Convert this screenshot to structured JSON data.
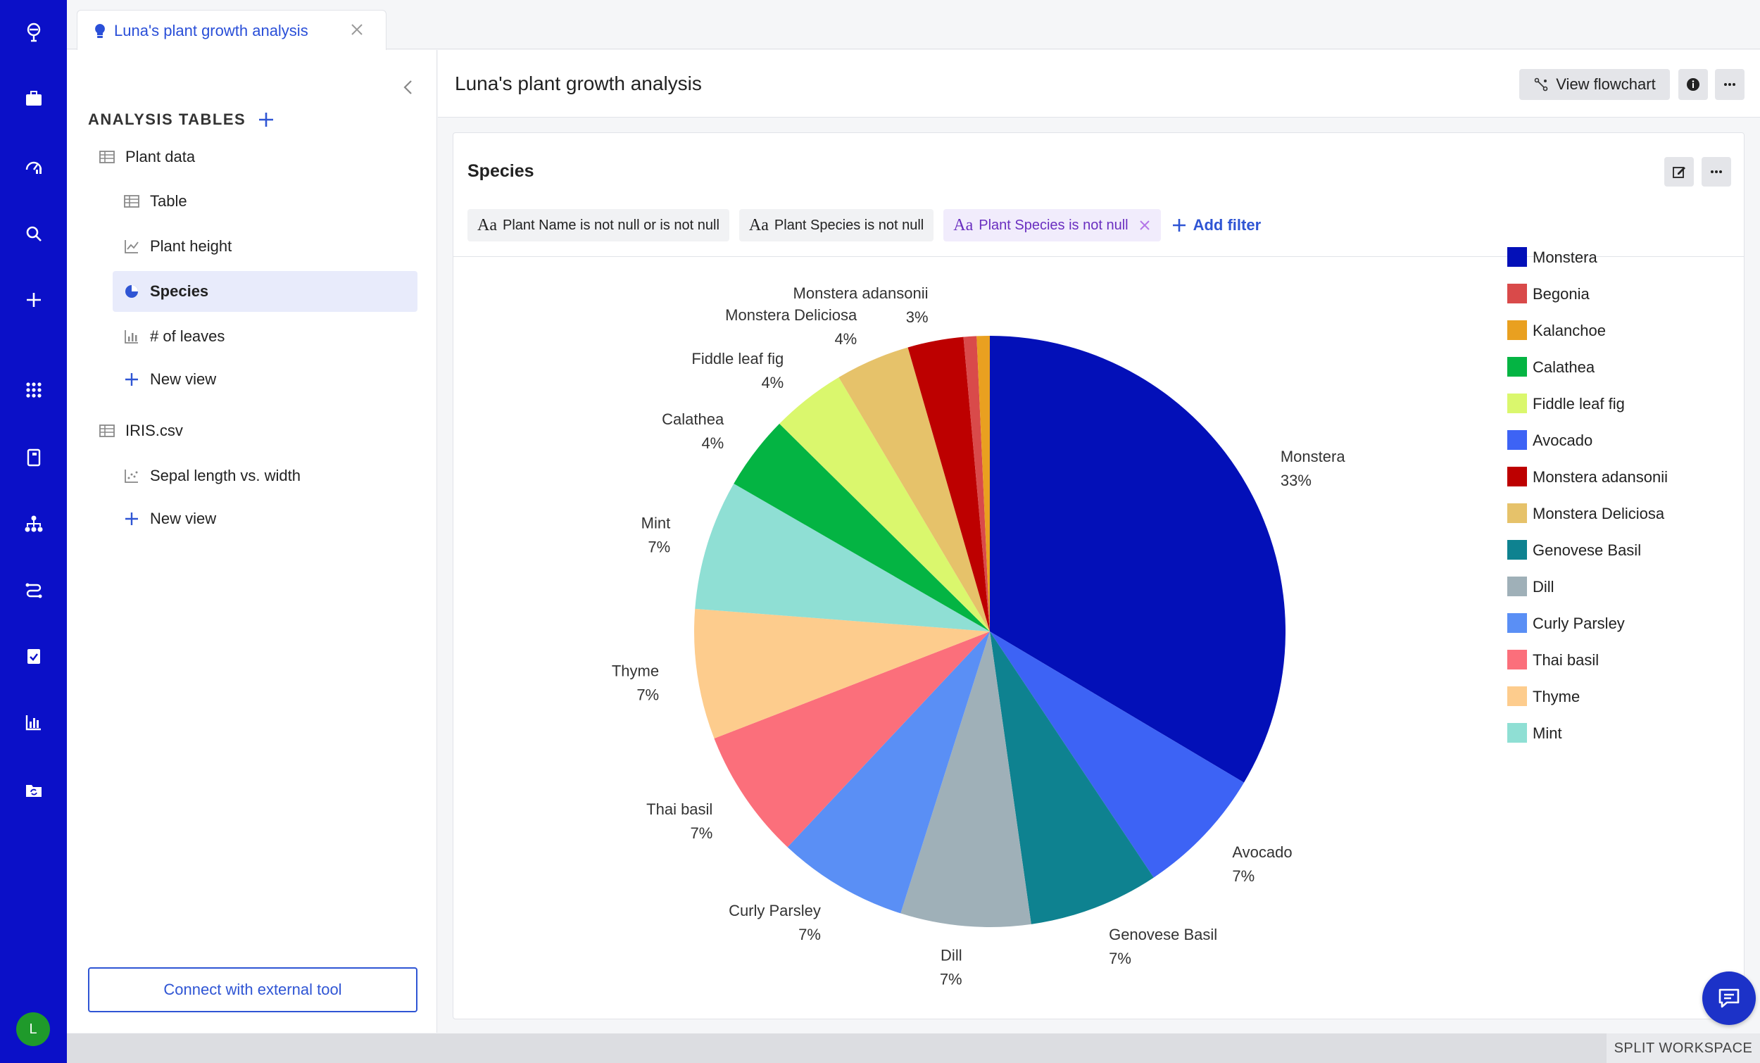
{
  "tab": {
    "title": "Luna's plant growth analysis"
  },
  "rail": {
    "items": [
      "brand-icon",
      "briefcase-icon",
      "gauge-icon",
      "search-icon",
      "plus-icon",
      "apps-grid-icon",
      "book-icon",
      "hierarchy-icon",
      "route-icon",
      "clipboard-check-icon",
      "bar-chart-icon",
      "folder-sync-icon"
    ],
    "avatar": "L"
  },
  "sidebar": {
    "section_title": "ANALYSIS TABLES",
    "tables": [
      {
        "name": "Plant data",
        "views": [
          "Table",
          "Plant height",
          "Species",
          "# of leaves"
        ],
        "new_view": "New view"
      },
      {
        "name": "IRIS.csv",
        "views": [
          "Sepal length vs. width"
        ],
        "new_view": "New view"
      }
    ],
    "connect_label": "Connect with external tool"
  },
  "header": {
    "title": "Luna's plant growth analysis",
    "view_flowchart": "View flowchart"
  },
  "card": {
    "title": "Species",
    "filters": [
      {
        "prefix": "Aa",
        "label": "Plant Name is not null or is not null"
      },
      {
        "prefix": "Aa",
        "label": "Plant Species is not null"
      },
      {
        "prefix": "Aa",
        "label": "Plant Species is not null"
      }
    ],
    "add_filter": "Add filter"
  },
  "chart_data": {
    "type": "pie",
    "slices": [
      {
        "name": "Monstera",
        "percent": 33,
        "label": "33%",
        "color": "#0310b8"
      },
      {
        "name": "Avocado",
        "percent": 7,
        "label": "7%",
        "color": "#3d63f5"
      },
      {
        "name": "Genovese Basil",
        "percent": 7,
        "label": "7%",
        "color": "#0e8290"
      },
      {
        "name": "Dill",
        "percent": 7,
        "label": "7%",
        "color": "#9fb0b8"
      },
      {
        "name": "Curly Parsley",
        "percent": 7,
        "label": "7%",
        "color": "#5a8ff5"
      },
      {
        "name": "Thai basil",
        "percent": 7,
        "label": "7%",
        "color": "#fb6f7b"
      },
      {
        "name": "Thyme",
        "percent": 7,
        "label": "7%",
        "color": "#fdcc8d"
      },
      {
        "name": "Mint",
        "percent": 7,
        "label": "7%",
        "color": "#8fdfd4"
      },
      {
        "name": "Calathea",
        "percent": 4,
        "label": "4%",
        "color": "#04b443"
      },
      {
        "name": "Fiddle leaf fig",
        "percent": 4,
        "label": "4%",
        "color": "#daf76d"
      },
      {
        "name": "Monstera Deliciosa",
        "percent": 4,
        "label": "4%",
        "color": "#e6c26a"
      },
      {
        "name": "Monstera adansonii",
        "percent": 3,
        "label": "3%",
        "color": "#bd0000"
      },
      {
        "name": "Begonia",
        "percent": 0.7,
        "label": "",
        "color": "#d94a4a"
      },
      {
        "name": "Kalanchoe",
        "percent": 0.7,
        "label": "",
        "color": "#e9a020"
      }
    ],
    "legend": [
      "Monstera",
      "Begonia",
      "Kalanchoe",
      "Calathea",
      "Fiddle leaf fig",
      "Avocado",
      "Monstera adansonii",
      "Monstera Deliciosa",
      "Genovese Basil",
      "Dill",
      "Curly Parsley",
      "Thai basil",
      "Thyme",
      "Mint"
    ],
    "legend_position": "right"
  },
  "footer": {
    "split_workspace": "SPLIT WORKSPACE"
  }
}
